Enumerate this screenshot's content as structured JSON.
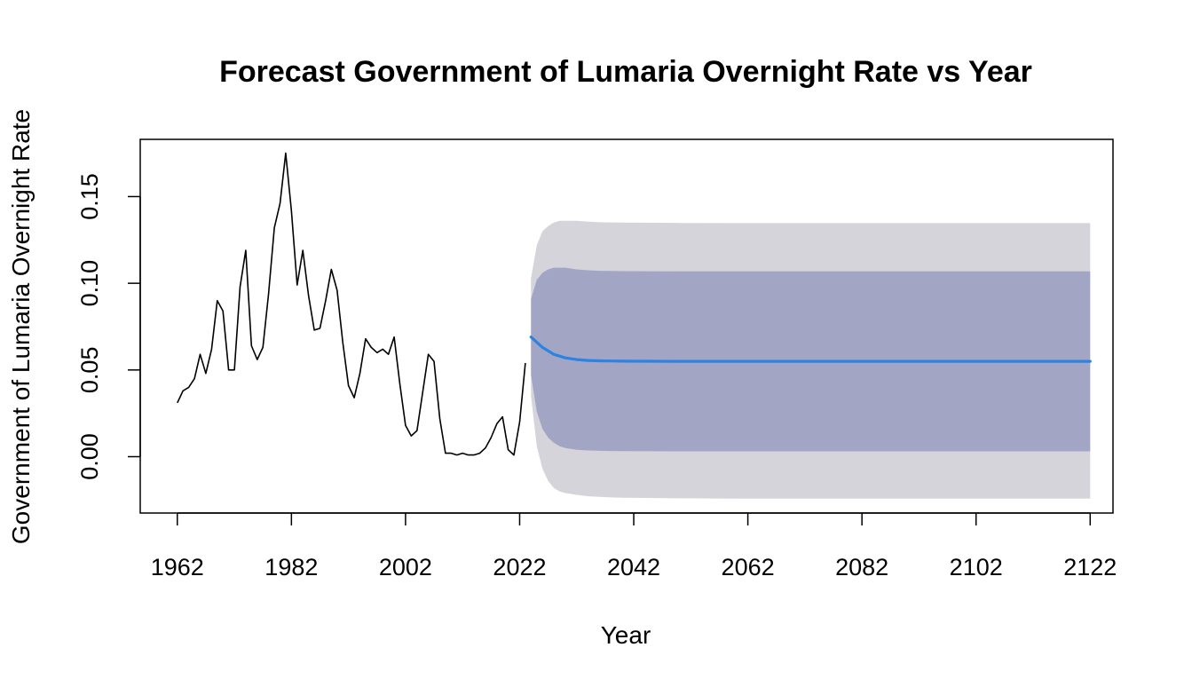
{
  "chart_data": {
    "type": "line",
    "title": "Forecast Government of Lumaria Overnight Rate vs Year",
    "xlabel": "Year",
    "ylabel": "Government of Lumaria Overnight Rate",
    "xlim": [
      1955.5,
      2126
    ],
    "ylim": [
      -0.0325,
      0.183
    ],
    "x_ticks": [
      1962,
      1982,
      2002,
      2022,
      2042,
      2062,
      2082,
      2102,
      2122
    ],
    "y_ticks": [
      0.0,
      0.05,
      0.1,
      0.15
    ],
    "y_tick_labels": [
      "0.00",
      "0.05",
      "0.10",
      "0.15"
    ],
    "grid": false,
    "colors": {
      "history": "#000000",
      "forecast": "#2b83e2",
      "band_80": "#a3a5c5",
      "band_95": "#d4d4da"
    },
    "history": {
      "x": [
        1962,
        1963,
        1964,
        1965,
        1966,
        1967,
        1968,
        1969,
        1970,
        1971,
        1972,
        1973,
        1974,
        1975,
        1976,
        1977,
        1978,
        1979,
        1980,
        1981,
        1982,
        1983,
        1984,
        1985,
        1986,
        1987,
        1988,
        1989,
        1990,
        1991,
        1992,
        1993,
        1994,
        1995,
        1996,
        1997,
        1998,
        1999,
        2000,
        2001,
        2002,
        2003,
        2004,
        2005,
        2006,
        2007,
        2008,
        2009,
        2010,
        2011,
        2012,
        2013,
        2014,
        2015,
        2016,
        2017,
        2018,
        2019,
        2020,
        2021,
        2022,
        2023
      ],
      "y": [
        0.031,
        0.038,
        0.04,
        0.045,
        0.059,
        0.048,
        0.062,
        0.09,
        0.084,
        0.05,
        0.05,
        0.098,
        0.119,
        0.064,
        0.056,
        0.063,
        0.094,
        0.132,
        0.146,
        0.175,
        0.142,
        0.099,
        0.119,
        0.093,
        0.073,
        0.074,
        0.09,
        0.108,
        0.096,
        0.066,
        0.041,
        0.034,
        0.048,
        0.068,
        0.063,
        0.06,
        0.062,
        0.059,
        0.069,
        0.042,
        0.018,
        0.012,
        0.015,
        0.037,
        0.059,
        0.055,
        0.022,
        0.002,
        0.002,
        0.001,
        0.002,
        0.001,
        0.001,
        0.002,
        0.005,
        0.011,
        0.019,
        0.023,
        0.004,
        0.001,
        0.02,
        0.054
      ]
    },
    "forecast": {
      "x": [
        2024,
        2025,
        2026,
        2027,
        2028,
        2029,
        2030,
        2032,
        2034,
        2036,
        2038,
        2040,
        2050,
        2060,
        2080,
        2100,
        2122
      ],
      "mean": [
        0.069,
        0.066,
        0.063,
        0.061,
        0.059,
        0.058,
        0.057,
        0.056,
        0.0555,
        0.0553,
        0.0552,
        0.0551,
        0.055,
        0.055,
        0.055,
        0.055,
        0.055
      ],
      "lo80": [
        0.047,
        0.026,
        0.016,
        0.011,
        0.008,
        0.006,
        0.005,
        0.004,
        0.0036,
        0.0034,
        0.0033,
        0.0032,
        0.0031,
        0.0031,
        0.0031,
        0.0031,
        0.0031
      ],
      "hi80": [
        0.091,
        0.102,
        0.106,
        0.108,
        0.109,
        0.109,
        0.109,
        0.108,
        0.1075,
        0.1072,
        0.1071,
        0.107,
        0.1069,
        0.1069,
        0.1069,
        0.1069,
        0.1069
      ],
      "lo95": [
        0.035,
        0.006,
        -0.007,
        -0.014,
        -0.018,
        -0.02,
        -0.021,
        -0.022,
        -0.0228,
        -0.0232,
        -0.0235,
        -0.0237,
        -0.024,
        -0.0242,
        -0.0242,
        -0.0242,
        -0.0242
      ],
      "hi95": [
        0.103,
        0.122,
        0.13,
        0.133,
        0.135,
        0.136,
        0.136,
        0.136,
        0.1355,
        0.1352,
        0.1351,
        0.135,
        0.1348,
        0.1347,
        0.1347,
        0.1347,
        0.1347
      ]
    }
  }
}
